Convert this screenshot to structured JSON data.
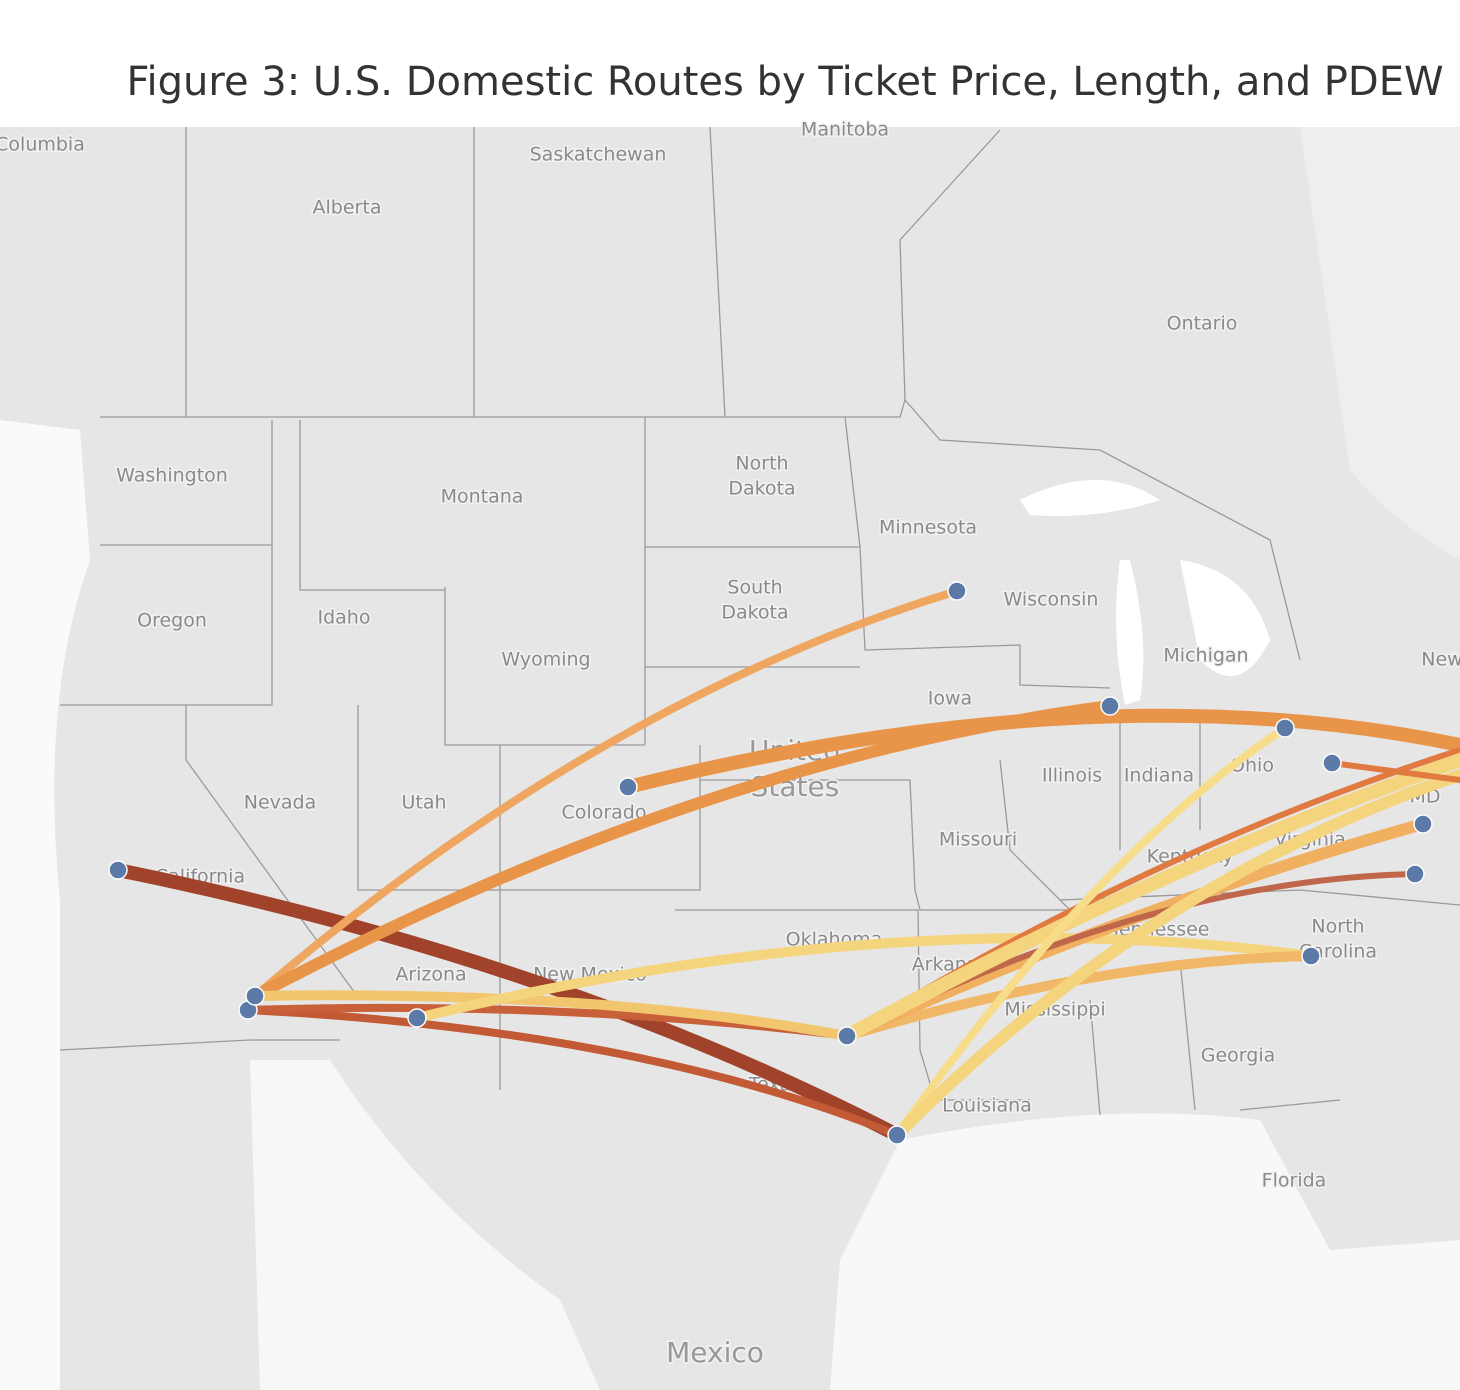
{
  "header": {
    "title": "Figure 3: U.S. Domestic Routes by Ticket Price, Length, and PDEW"
  },
  "map": {
    "labels": [
      "Columbia",
      "Manitoba",
      "Saskatchewan",
      "Alberta",
      "Ontario",
      "Washington",
      "Montana",
      "North",
      "Dakota",
      "Minnesota",
      "South",
      "Dakota",
      "Wisconsin",
      "Oregon",
      "Idaho",
      "Wyoming",
      "Michigan",
      "New",
      "Iowa",
      "United",
      "States",
      "Illinois",
      "Indiana",
      "Ohio",
      "Nevada",
      "Utah",
      "Colorado",
      "MD",
      "Missouri",
      "Virginia",
      "California",
      "Kentucky",
      "Oklahoma",
      "Tennessee",
      "North",
      "Carolina",
      "Arizona",
      "New Mexico",
      "Arkansas",
      "Mississippi",
      "Georgia",
      "Texas",
      "Louisiana",
      "Florida",
      "Mexico"
    ]
  }
}
